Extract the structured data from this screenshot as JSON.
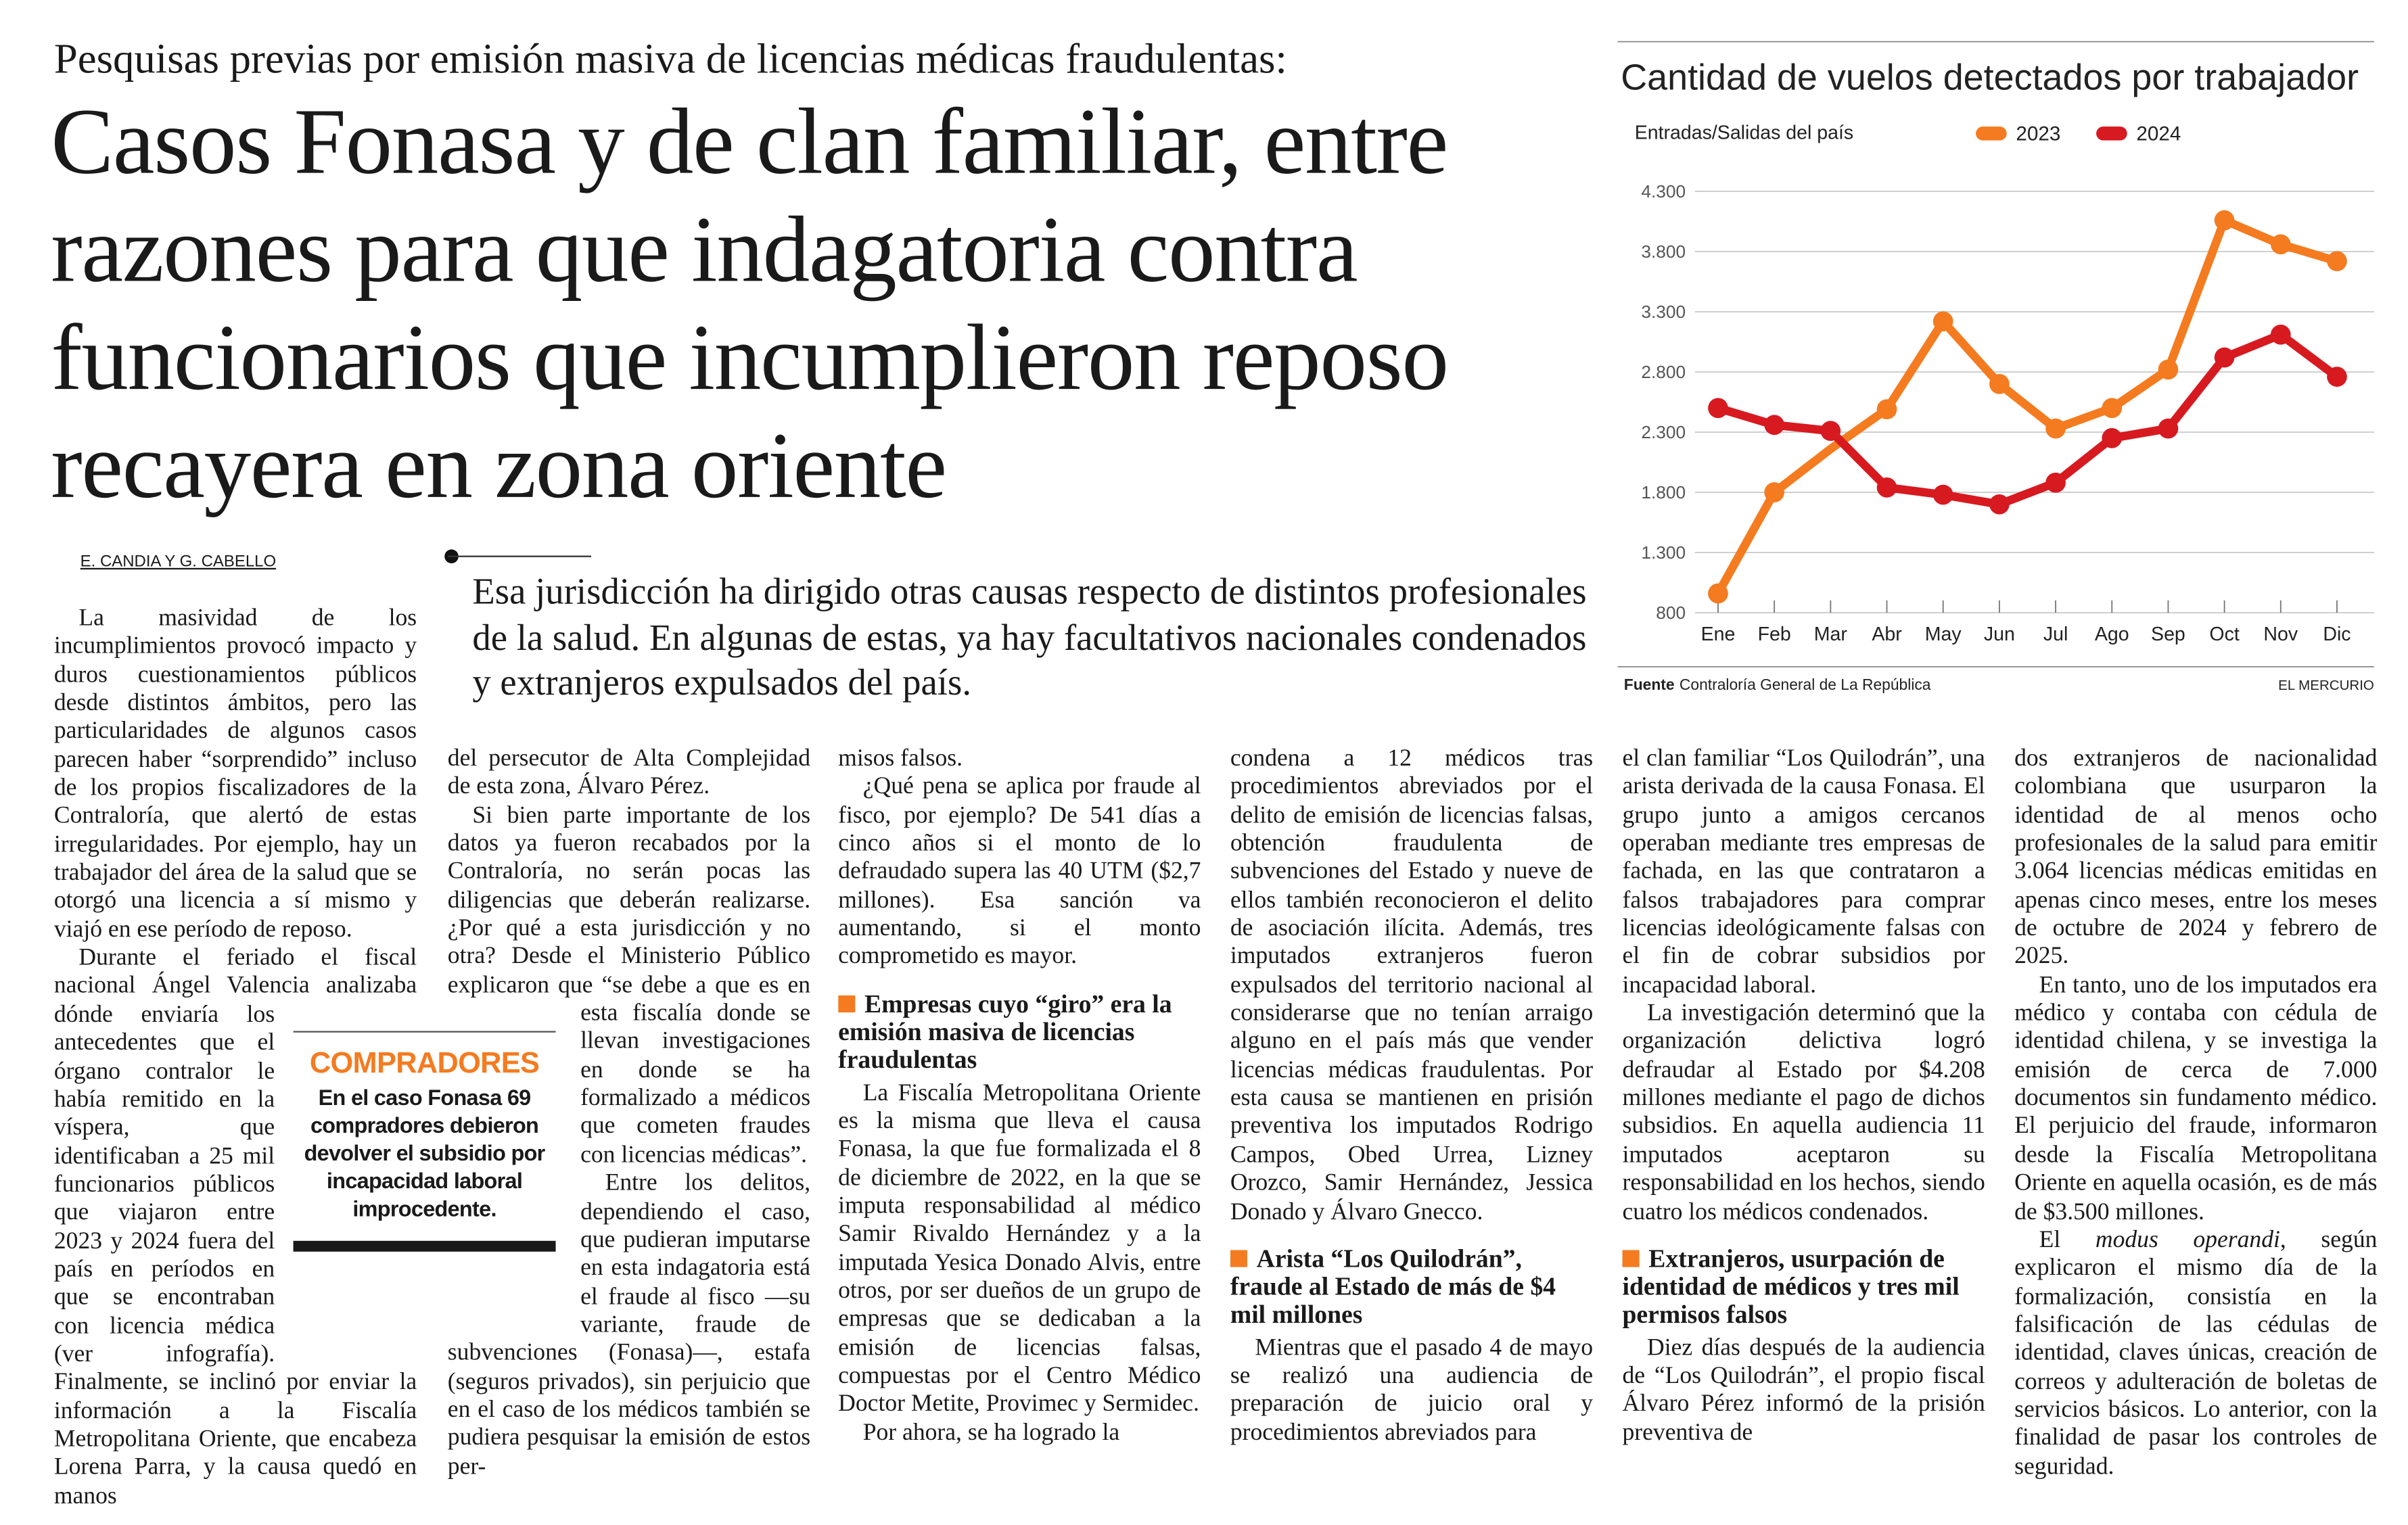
{
  "article": {
    "kicker": "Pesquisas previas por emisión masiva de licencias médicas fraudulentas:",
    "headline": "Casos Fonasa y de clan familiar, entre razones para que indagatoria contra funcionarios que incumplieron reposo recayera en zona oriente",
    "byline": "E. CANDIA Y G. CABELLO",
    "deck": "Esa jurisdicción ha dirigido otras causas respecto de distintos profesionales de la salud. En algunas de estas, ya hay facultativos nacionales condenados y extranjeros expulsados del país.",
    "sidebar": {
      "title": "COMPRADORES",
      "text": "En el caso Fonasa 69 compradores debieron devolver el subsidio por incapacidad laboral improcedente."
    },
    "columns": [
      [
        {
          "type": "p",
          "text": "La masividad de los incumplimientos provocó impacto y duros cuestionamientos públicos desde distintos ámbitos, pero las particularidades de algunos casos parecen haber “sorprendido” incluso de los propios fiscalizadores de la Contraloría, que alertó de estas irregularidades. Por ejemplo, hay un trabajador del área de la salud que se otorgó una licencia a sí mismo y viajó en ese período de reposo."
        },
        {
          "type": "p",
          "text": "Durante el feriado el fiscal nacional Ángel Valencia analizaba dónde enviaría los antecedentes que el órgano contralor le había remitido en la víspera, que identificaban a 25 mil funcionarios públicos que viajaron entre 2023 y 2024 fuera del país en períodos en que se encontraban con licencia médica (ver infografía). Finalmente, se inclinó por enviar la información a la Fiscalía Metropolitana Oriente, que encabeza Lorena Parra, y la causa quedó en manos"
        }
      ],
      [
        {
          "type": "p",
          "noindent": true,
          "text": "del persecutor de Alta Complejidad de esta zona, Álvaro Pérez."
        },
        {
          "type": "p",
          "text": "Si bien parte importante de los datos ya fueron recabados por la Contraloría, no serán pocas las diligencias que deberán realizarse. ¿Por qué a esta jurisdicción y no otra? Desde el Ministerio Público explicaron que “se debe a que es en esta fiscalía donde se llevan investigaciones en donde se ha formalizado a médicos que cometen fraudes con licencias médicas”."
        },
        {
          "type": "p",
          "text": "Entre los delitos, dependiendo el caso, que pudieran imputarse en esta indagatoria está el fraude al fisco —su variante, fraude de subvenciones (Fonasa)—, estafa (seguros privados), sin perjuicio que en el caso de los médicos también se pudiera pesquisar la emisión de estos per-"
        }
      ],
      [
        {
          "type": "p",
          "noindent": true,
          "text": "misos falsos."
        },
        {
          "type": "p",
          "text": "¿Qué pena se aplica por fraude al fisco, por ejemplo? De 541 días a cinco años si el monto de lo defraudado supera las 40 UTM ($2,7 millones). Esa sanción va aumentando, si el monto comprometido es mayor."
        },
        {
          "type": "h",
          "text": "Empresas cuyo “giro” era la emisión masiva de licencias fraudulentas"
        },
        {
          "type": "p",
          "text": "La Fiscalía Metropolitana Oriente es la misma que lleva el causa Fonasa, la que fue formalizada el 8 de diciembre de 2022, en la que se imputa responsabilidad al médico Samir Rivaldo Hernández y a la imputada Yesica Donado Alvis, entre otros, por ser dueños de un grupo de empresas que se dedicaban a la emisión de licencias falsas, compuestas por el Centro Médico Doctor Metite, Provimec y Sermidec."
        },
        {
          "type": "p",
          "text": "Por ahora, se ha logrado la"
        }
      ],
      [
        {
          "type": "p",
          "noindent": true,
          "text": "condena a 12 médicos tras procedimientos abreviados por el delito de emisión de licencias falsas, obtención fraudulenta de subvenciones del Estado y nueve de ellos también reconocieron el delito de asociación ilícita. Además, tres imputados extranjeros fueron expulsados del territorio nacional al considerarse que no tenían arraigo alguno en el país más que vender licencias médicas fraudulentas. Por esta causa se mantienen en prisión preventiva los imputados Rodrigo Campos, Obed Urrea, Lizney Orozco, Samir Hernández, Jessica Donado y Álvaro Gnecco."
        },
        {
          "type": "h",
          "text": "Arista “Los Quilodrán”, fraude al Estado de más de $4 mil millones"
        },
        {
          "type": "p",
          "text": "Mientras que el pasado 4 de mayo se realizó una audiencia de preparación de juicio oral y procedimientos abreviados para"
        }
      ],
      [
        {
          "type": "p",
          "noindent": true,
          "text": "el clan familiar “Los Quilodrán”, una arista derivada de la causa Fonasa. El grupo junto a amigos cercanos operaban mediante tres empresas de fachada, en las que contrataron a falsos trabajadores para comprar licencias ideológicamente falsas con el fin de cobrar subsidios por incapacidad laboral."
        },
        {
          "type": "p",
          "text": "La investigación determinó que la organización delictiva logró defraudar al Estado por $4.208 millones mediante el pago de dichos subsidios. En aquella audiencia 11 imputados aceptaron su responsabilidad en los hechos, siendo cuatro los médicos condenados."
        },
        {
          "type": "h",
          "text": "Extranjeros, usurpación de identidad de médicos y tres mil permisos falsos"
        },
        {
          "type": "p",
          "text": "Diez días después de la audiencia de “Los Quilodrán”, el propio fiscal Álvaro Pérez informó de la prisión preventiva de"
        }
      ],
      [
        {
          "type": "p",
          "noindent": true,
          "text": "dos extranjeros de nacionalidad colombiana que usurparon la identidad de al menos ocho profesionales de la salud para emitir 3.064 licencias médicas emitidas en apenas cinco meses, entre los meses de octubre de 2024 y febrero de 2025."
        },
        {
          "type": "p",
          "text": "En tanto, uno de los imputados era médico y contaba con cédula de identidad chilena, y se investiga la emisión de cerca de 7.000 documentos sin fundamento médico. El perjuicio del fraude, informaron desde la Fiscalía Metropolitana Oriente en aquella ocasión, es de más de $3.500 millones."
        },
        {
          "type": "p",
          "pre": "El ",
          "italic": "modus operandi",
          "text": ", según explicaron el mismo día de la formalización, consistía en la falsificación de las cédulas de identidad, claves únicas, creación de correos y adulteración de boletas de servicios básicos. Lo anterior, con la finalidad de pasar los controles de seguridad."
        }
      ]
    ]
  },
  "chart_data": {
    "type": "line",
    "title": "Cantidad de vuelos detectados por trabajador",
    "subtitle": "Entradas/Salidas del país",
    "categories": [
      "Ene",
      "Feb",
      "Mar",
      "Abr",
      "May",
      "Jun",
      "Jul",
      "Ago",
      "Sep",
      "Oct",
      "Nov",
      "Dic"
    ],
    "series": [
      {
        "name": "2023",
        "color": "#f47b20",
        "values": [
          960,
          1800,
          2160,
          2490,
          3220,
          2700,
          2330,
          2500,
          2820,
          4060,
          3860,
          3720
        ]
      },
      {
        "name": "2024",
        "color": "#d71920",
        "values": [
          2500,
          2360,
          2310,
          1840,
          1780,
          1700,
          1880,
          2250,
          2330,
          2920,
          3110,
          2760
        ]
      }
    ],
    "yticks": [
      800,
      1300,
      1800,
      2300,
      2800,
      3300,
      3800,
      4300
    ],
    "ytick_labels": [
      "800",
      "1.300",
      "1.800",
      "2.300",
      "2.800",
      "3.300",
      "3.800",
      "4.300"
    ],
    "ylim": [
      800,
      4300
    ],
    "grid": true,
    "legend": "top",
    "source_label": "Fuente",
    "source": "Contraloría General de La República",
    "credit": "EL MERCURIO"
  }
}
